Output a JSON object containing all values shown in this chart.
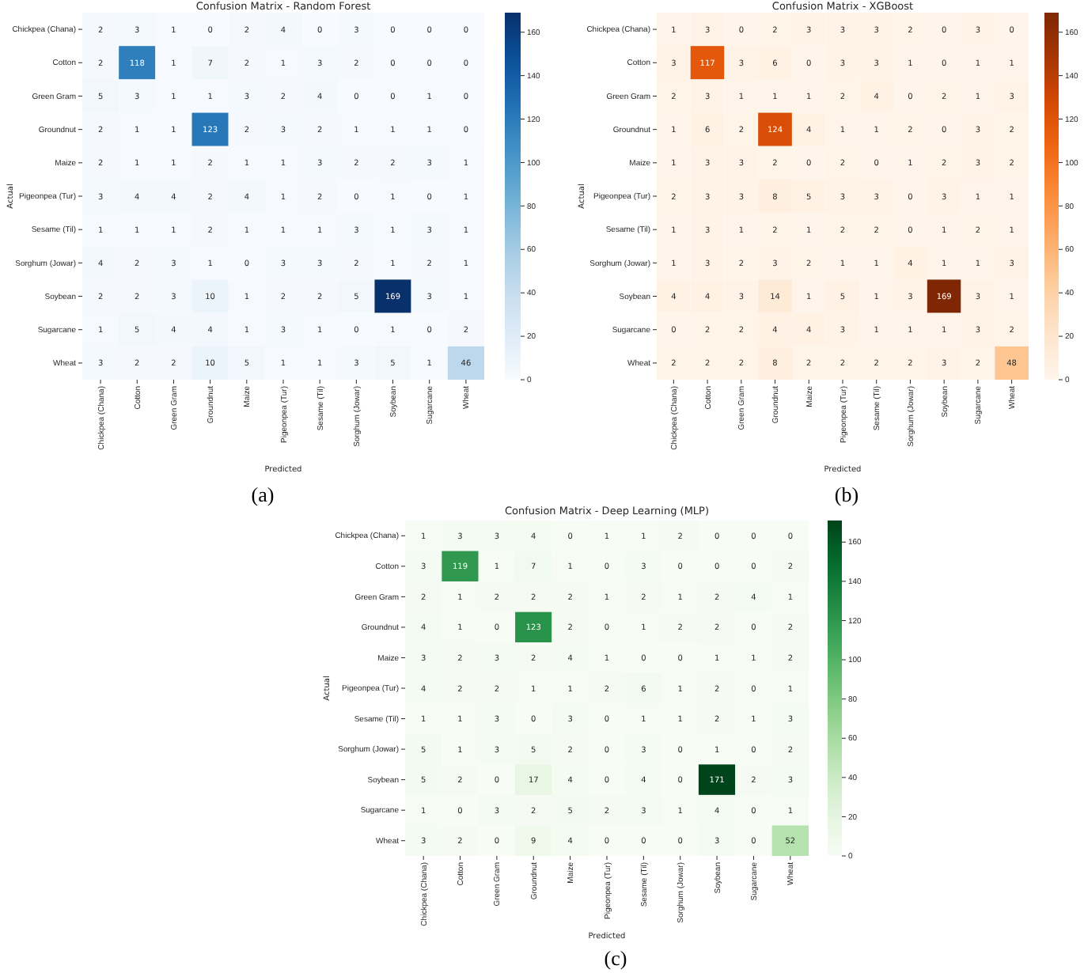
{
  "chart_data": [
    {
      "type": "heatmap",
      "title": "Confusion Matrix - Random Forest",
      "xlabel": "Predicted",
      "ylabel": "Actual",
      "annotations": [
        "(a)"
      ],
      "categories": [
        "Chickpea (Chana)",
        "Cotton",
        "Green Gram",
        "Groundnut",
        "Maize",
        "Pigeonpea (Tur)",
        "Sesame (Til)",
        "Sorghum (Jowar)",
        "Soybean",
        "Sugarcane",
        "Wheat"
      ],
      "y_categories": [
        "Chickpea (Chana)",
        "Cotton",
        "Green Gram",
        "Groundnut",
        "Maize",
        "Pigeonpea (Tur)",
        "Sesame (Til)",
        "Sorghum (Jowar)",
        "Soybean",
        "Sugarcane",
        "Wheat"
      ],
      "cells": [
        [
          2,
          3,
          1,
          0,
          2,
          4,
          0,
          3,
          0,
          0,
          0
        ],
        [
          2,
          118,
          1,
          7,
          2,
          1,
          3,
          2,
          0,
          0,
          0
        ],
        [
          5,
          3,
          1,
          1,
          3,
          2,
          4,
          0,
          0,
          1,
          0
        ],
        [
          2,
          1,
          1,
          123,
          2,
          3,
          2,
          1,
          1,
          1,
          0
        ],
        [
          2,
          1,
          1,
          2,
          1,
          1,
          3,
          2,
          2,
          3,
          1
        ],
        [
          3,
          4,
          4,
          2,
          4,
          1,
          2,
          0,
          1,
          0,
          1
        ],
        [
          1,
          1,
          1,
          2,
          1,
          1,
          1,
          3,
          1,
          3,
          1
        ],
        [
          4,
          2,
          3,
          1,
          0,
          3,
          3,
          2,
          1,
          2,
          1
        ],
        [
          2,
          2,
          3,
          10,
          1,
          2,
          2,
          5,
          169,
          3,
          1
        ],
        [
          1,
          5,
          4,
          4,
          1,
          3,
          1,
          0,
          1,
          0,
          2
        ],
        [
          3,
          2,
          2,
          10,
          5,
          1,
          1,
          3,
          5,
          1,
          46
        ]
      ],
      "data_labels": true,
      "color": "#08306b",
      "clim": [
        0,
        169
      ],
      "cticks": [
        0,
        20,
        40,
        60,
        80,
        100,
        120,
        140,
        160
      ]
    },
    {
      "type": "heatmap",
      "title": "Confusion Matrix - XGBoost",
      "xlabel": "Predicted",
      "ylabel": "Actual",
      "annotations": [
        "(b)"
      ],
      "categories": [
        "Chickpea (Chana)",
        "Cotton",
        "Green Gram",
        "Groundnut",
        "Maize",
        "Pigeonpea (Tur)",
        "Sesame (Til)",
        "Sorghum (Jowar)",
        "Soybean",
        "Sugarcane",
        "Wheat"
      ],
      "y_categories": [
        "Chickpea (Chana)",
        "Cotton",
        "Green Gram",
        "Groundnut",
        "Maize",
        "Pigeonpea (Tur)",
        "Sesame (Til)",
        "Sorghum (Jowar)",
        "Soybean",
        "Sugarcane",
        "Wheat"
      ],
      "cells": [
        [
          1,
          3,
          0,
          2,
          3,
          3,
          3,
          2,
          0,
          3,
          0
        ],
        [
          3,
          117,
          3,
          6,
          0,
          3,
          3,
          1,
          0,
          1,
          1
        ],
        [
          2,
          3,
          1,
          1,
          1,
          2,
          4,
          0,
          2,
          1,
          3
        ],
        [
          1,
          6,
          2,
          124,
          4,
          1,
          1,
          2,
          0,
          3,
          2
        ],
        [
          1,
          3,
          3,
          2,
          0,
          2,
          0,
          1,
          2,
          3,
          2
        ],
        [
          2,
          3,
          3,
          8,
          5,
          3,
          3,
          0,
          3,
          1,
          1
        ],
        [
          1,
          3,
          1,
          2,
          1,
          2,
          2,
          0,
          1,
          2,
          1
        ],
        [
          1,
          3,
          2,
          3,
          2,
          1,
          1,
          4,
          1,
          1,
          3
        ],
        [
          4,
          4,
          3,
          14,
          1,
          5,
          1,
          3,
          169,
          3,
          1
        ],
        [
          0,
          2,
          2,
          4,
          4,
          3,
          1,
          1,
          1,
          3,
          2
        ],
        [
          2,
          2,
          2,
          8,
          2,
          2,
          2,
          2,
          3,
          2,
          48
        ]
      ],
      "data_labels": true,
      "color": "#7f2704",
      "clim": [
        0,
        169
      ],
      "cticks": [
        0,
        20,
        40,
        60,
        80,
        100,
        120,
        140,
        160
      ]
    },
    {
      "type": "heatmap",
      "title": "Confusion Matrix - Deep Learning (MLP)",
      "xlabel": "Predicted",
      "ylabel": "Actual",
      "annotations": [
        "(c)"
      ],
      "categories": [
        "Chickpea (Chana)",
        "Cotton",
        "Green Gram",
        "Groundnut",
        "Maize",
        "Pigeonpea (Tur)",
        "Sesame (Til)",
        "Sorghum (Jowar)",
        "Soybean",
        "Sugarcane",
        "Wheat"
      ],
      "y_categories": [
        "Chickpea (Chana)",
        "Cotton",
        "Green Gram",
        "Groundnut",
        "Maize",
        "Pigeonpea (Tur)",
        "Sesame (Til)",
        "Sorghum (Jowar)",
        "Soybean",
        "Sugarcane",
        "Wheat"
      ],
      "cells": [
        [
          1,
          3,
          3,
          4,
          0,
          1,
          1,
          2,
          0,
          0,
          0
        ],
        [
          3,
          119,
          1,
          7,
          1,
          0,
          3,
          0,
          0,
          0,
          2
        ],
        [
          2,
          1,
          2,
          2,
          2,
          1,
          2,
          1,
          2,
          4,
          1
        ],
        [
          4,
          1,
          0,
          123,
          2,
          0,
          1,
          2,
          2,
          0,
          2
        ],
        [
          3,
          2,
          3,
          2,
          4,
          1,
          0,
          0,
          1,
          1,
          2
        ],
        [
          4,
          2,
          2,
          1,
          1,
          2,
          6,
          1,
          2,
          0,
          1
        ],
        [
          1,
          1,
          3,
          0,
          3,
          0,
          1,
          1,
          2,
          1,
          3
        ],
        [
          5,
          1,
          3,
          5,
          2,
          0,
          3,
          0,
          1,
          0,
          2
        ],
        [
          5,
          2,
          0,
          17,
          4,
          0,
          4,
          0,
          171,
          2,
          3
        ],
        [
          1,
          0,
          3,
          2,
          5,
          2,
          3,
          1,
          4,
          0,
          1
        ],
        [
          3,
          2,
          0,
          9,
          4,
          0,
          0,
          0,
          3,
          0,
          52
        ]
      ],
      "data_labels": true,
      "color": "#00441b",
      "clim": [
        0,
        171
      ],
      "cticks": [
        0,
        20,
        40,
        60,
        80,
        100,
        120,
        140,
        160
      ]
    }
  ]
}
